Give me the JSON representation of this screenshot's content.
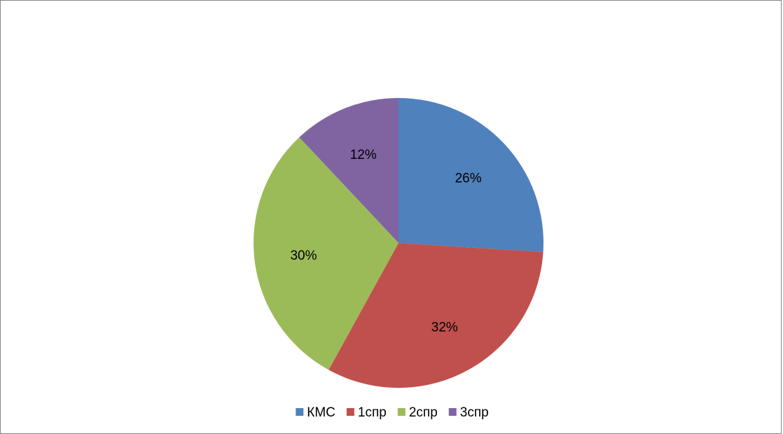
{
  "chart_data": {
    "type": "pie",
    "title": "",
    "categories": [
      "КМС",
      "1спр",
      "2спр",
      "3спр"
    ],
    "values": [
      26,
      32,
      30,
      12
    ],
    "value_labels": [
      "26%",
      "32%",
      "30%",
      "12%"
    ],
    "colors": [
      "#4F81BD",
      "#C0504D",
      "#9BBB59",
      "#8064A2"
    ],
    "legend": {
      "position": "bottom",
      "entries": [
        "КМС",
        "1спр",
        "2спр",
        "3спр"
      ]
    },
    "start_angle_deg": 0,
    "direction": "clockwise"
  }
}
